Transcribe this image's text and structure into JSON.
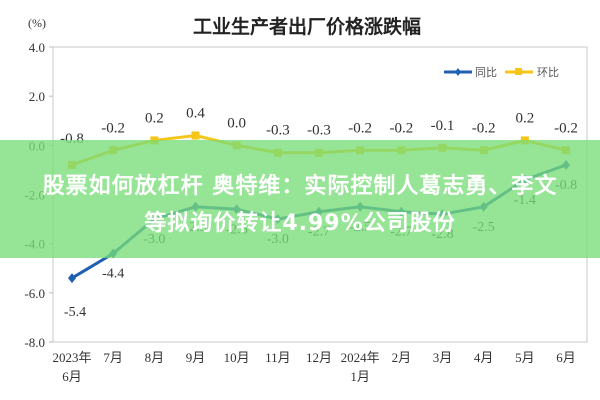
{
  "chart_data": {
    "type": "line",
    "title": "工业生产者出厂价格涨跌幅",
    "ylabel": "(%)",
    "xlabel": "",
    "ylim": [
      -8.0,
      4.0
    ],
    "yticks": [
      "4.0",
      "2.0",
      "0.0",
      "-2.0",
      "-4.0",
      "-6.0",
      "-8.0"
    ],
    "ytick_values": [
      4,
      2,
      0,
      -2,
      -4,
      -6,
      -8
    ],
    "categories": [
      "2023年6月",
      "7月",
      "8月",
      "9月",
      "10月",
      "11月",
      "12月",
      "2024年1月",
      "2月",
      "3月",
      "4月",
      "5月",
      "6月"
    ],
    "category_lines": [
      [
        "2023年",
        "6月"
      ],
      [
        "7月"
      ],
      [
        "8月"
      ],
      [
        "9月"
      ],
      [
        "10月"
      ],
      [
        "11月"
      ],
      [
        "12月"
      ],
      [
        "2024年",
        "1月"
      ],
      [
        "2月"
      ],
      [
        "3月"
      ],
      [
        "4月"
      ],
      [
        "5月"
      ],
      [
        "6月"
      ]
    ],
    "series": [
      {
        "name": "同比",
        "color": "#1f5fb0",
        "values": [
          -5.4,
          -4.4,
          -3.0,
          -2.5,
          -2.6,
          -3.0,
          -2.7,
          -2.5,
          -2.7,
          -2.8,
          -2.5,
          -1.4,
          -0.8
        ],
        "labels": [
          "-5.4",
          "-4.4",
          "-3.0",
          "-2.5",
          "-2.6",
          "-3.0",
          "-2.7",
          "-2.5",
          "-2.7",
          "-2.8",
          "-2.5",
          "-1.4",
          "-0.8"
        ]
      },
      {
        "name": "环比",
        "color": "#f5c518",
        "values": [
          -0.8,
          -0.2,
          0.2,
          0.4,
          0.0,
          -0.3,
          -0.3,
          -0.2,
          -0.2,
          -0.1,
          -0.2,
          0.2,
          -0.2
        ],
        "labels": [
          "-0.8",
          "-0.2",
          "0.2",
          "0.4",
          "0.0",
          "-0.3",
          "-0.3",
          "-0.2",
          "-0.2",
          "-0.1",
          "-0.2",
          "0.2",
          "-0.2"
        ]
      }
    ],
    "legend_position": "top-right",
    "grid": false
  },
  "overlay": {
    "line1": "股票如何放杠杆 奥特维：实际控制人葛志勇、李文",
    "line2": "等拟询价转让4.99%公司股份",
    "color": "#78dc78"
  }
}
